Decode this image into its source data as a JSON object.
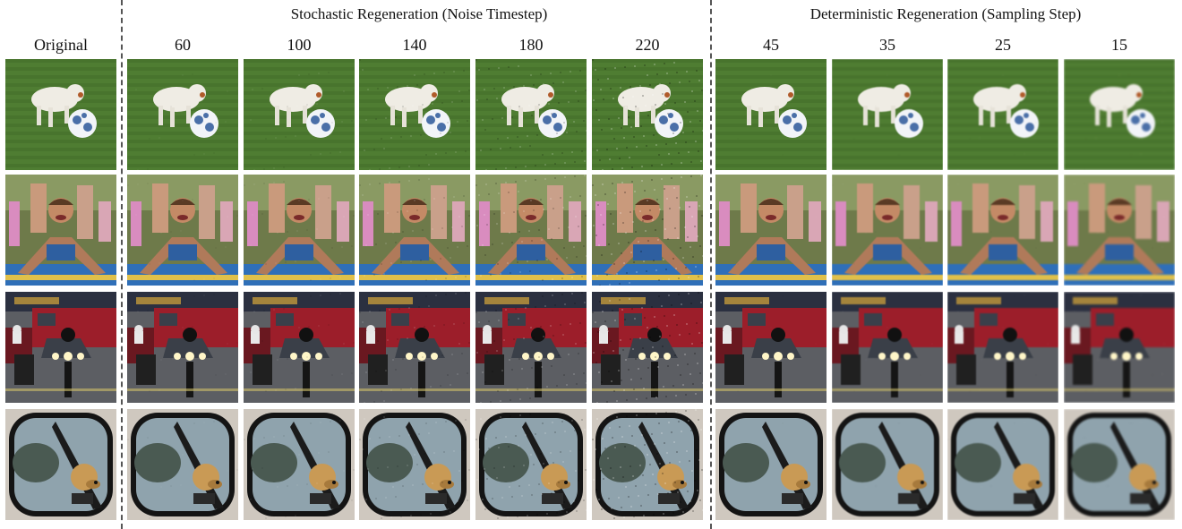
{
  "groups": {
    "stochastic_title": "Stochastic Regeneration (Noise Timestep)",
    "deterministic_title": "Deterministic Regeneration (Sampling Step)"
  },
  "columns": [
    "Original",
    "60",
    "100",
    "140",
    "180",
    "220",
    "45",
    "35",
    "25",
    "15"
  ],
  "rows": [
    "dog-with-soccer-ball",
    "boy-on-slip-and-slide",
    "police-motorcycle-parade",
    "dog-in-car-side-mirror"
  ],
  "colors": {
    "grass": "#4f7d32",
    "grass_dark": "#3c6326",
    "tarp_blue": "#2f6fb8",
    "tarp_yellow": "#e0c04a",
    "truck_red": "#9c1e2a",
    "road": "#5c5e63",
    "mirror_frame": "#141414",
    "glass": "#8fa3ad"
  }
}
